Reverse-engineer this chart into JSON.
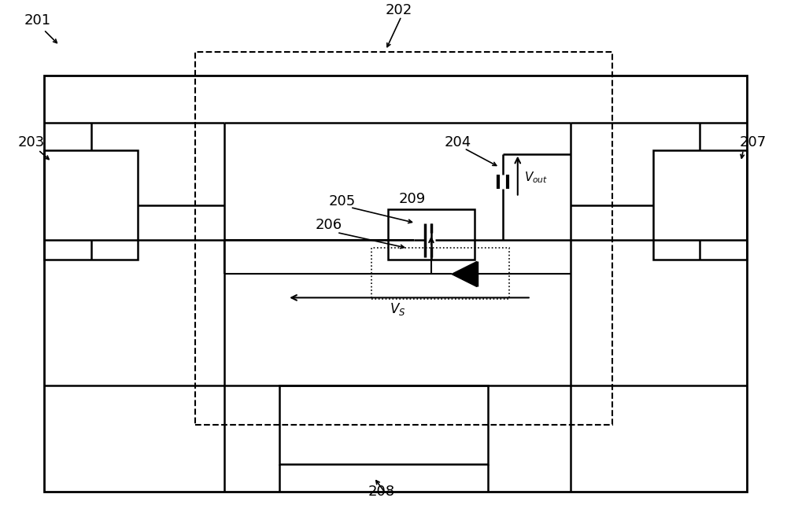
{
  "bg_color": "#ffffff",
  "line_color": "#000000",
  "label_color": "#000000",
  "fig_width": 10.0,
  "fig_height": 6.75,
  "dpi": 100
}
